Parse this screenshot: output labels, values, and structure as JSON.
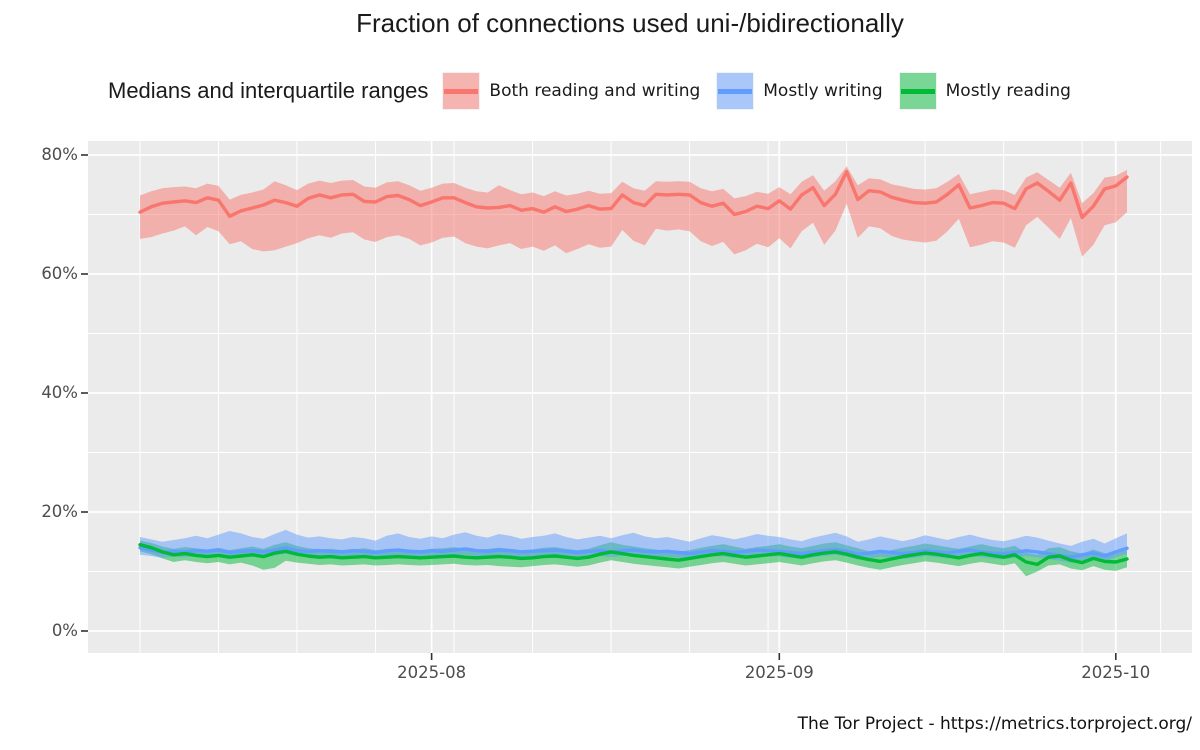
{
  "title": "Fraction of connections used uni-/bidirectionally",
  "legend": {
    "title": "Medians and interquartile ranges",
    "items": [
      {
        "name": "both-reading-and-writing",
        "label": "Both reading and writing",
        "color": "#F8766D"
      },
      {
        "name": "mostly-writing",
        "label": "Mostly writing",
        "color": "#619CFF"
      },
      {
        "name": "mostly-reading",
        "label": "Mostly reading",
        "color": "#00BA38"
      }
    ]
  },
  "footer": "The Tor Project - https://metrics.torproject.org/",
  "colors": {
    "panel_bg": "#EBEBEB",
    "grid": "#FFFFFF",
    "axis_text": "#4D4D4D",
    "tick_mark": "#333333",
    "legend_key_bg": "#F2F2F2",
    "red": "#F8766D",
    "blue": "#619CFF",
    "green": "#00BA38"
  },
  "axes": {
    "y_ticks": [
      {
        "label": "80%",
        "value": 80
      },
      {
        "label": "60%",
        "value": 60
      },
      {
        "label": "40%",
        "value": 40
      },
      {
        "label": "20%",
        "value": 20
      },
      {
        "label": "0%",
        "value": 0
      }
    ],
    "y_minor": [
      70,
      50,
      30,
      10
    ],
    "x_ticks": [
      {
        "label": "2025-08",
        "day_index": 26
      },
      {
        "label": "2025-09",
        "day_index": 57
      },
      {
        "label": "2025-10",
        "day_index": 87
      }
    ]
  },
  "chart_data": {
    "type": "area",
    "title": "Fraction of connections used uni-/bidirectionally",
    "subtitle": "Medians and interquartile ranges",
    "x_start_date": "2025-07-06",
    "x_end_date": "2025-10-02",
    "x_unit": "day",
    "n_points": 89,
    "ylabel": "",
    "ylim": [
      0,
      82
    ],
    "grid": true,
    "legend_position": "top",
    "series": [
      {
        "name": "Both reading and writing",
        "color": "#F8766D",
        "median": [
          70.4,
          71.3,
          71.9,
          72.1,
          72.3,
          72.0,
          72.8,
          72.4,
          69.7,
          70.6,
          71.1,
          71.6,
          72.4,
          72.0,
          71.4,
          72.7,
          73.3,
          72.8,
          73.3,
          73.4,
          72.2,
          72.1,
          73.0,
          73.2,
          72.5,
          71.5,
          72.1,
          72.8,
          72.8,
          72.0,
          71.3,
          71.1,
          71.2,
          71.5,
          70.7,
          71.0,
          70.4,
          71.3,
          70.5,
          70.9,
          71.5,
          70.9,
          71.0,
          73.3,
          72.0,
          71.5,
          73.4,
          73.3,
          73.4,
          73.3,
          72.0,
          71.4,
          71.9,
          70.0,
          70.5,
          71.4,
          71.0,
          72.3,
          70.9,
          73.3,
          74.5,
          71.5,
          73.4,
          77.2,
          72.5,
          74.0,
          73.8,
          72.9,
          72.4,
          72.0,
          71.9,
          72.1,
          73.4,
          75.0,
          71.1,
          71.5,
          72.0,
          71.9,
          71.0,
          74.3,
          75.3,
          73.9,
          72.4,
          75.3,
          69.5,
          71.4,
          74.3,
          74.8,
          76.3
        ],
        "upper": [
          73.2,
          73.9,
          74.4,
          74.6,
          74.7,
          74.4,
          75.2,
          74.8,
          72.5,
          73.3,
          73.7,
          74.2,
          75.6,
          74.9,
          74.1,
          75.2,
          75.7,
          75.3,
          75.7,
          75.8,
          74.7,
          74.5,
          75.4,
          75.6,
          74.9,
          74.0,
          74.5,
          75.2,
          75.3,
          74.5,
          73.9,
          73.7,
          74.9,
          74.1,
          73.4,
          73.7,
          73.1,
          73.9,
          73.2,
          73.5,
          74.0,
          73.5,
          73.6,
          75.5,
          74.4,
          74.0,
          75.6,
          75.5,
          75.6,
          75.5,
          74.4,
          73.9,
          74.3,
          72.7,
          73.1,
          73.8,
          73.5,
          74.6,
          73.4,
          75.5,
          76.6,
          74.0,
          75.6,
          78.1,
          74.9,
          76.1,
          75.9,
          75.1,
          74.7,
          74.3,
          74.2,
          74.4,
          75.5,
          76.8,
          73.4,
          73.8,
          74.2,
          74.1,
          73.3,
          76.2,
          77.1,
          75.8,
          74.5,
          77.0,
          71.9,
          73.6,
          76.2,
          76.5,
          77.5
        ],
        "lower": [
          65.9,
          66.2,
          66.8,
          67.3,
          68.0,
          66.5,
          67.9,
          67.2,
          65.0,
          65.5,
          64.2,
          63.8,
          64.0,
          64.6,
          65.2,
          66.0,
          66.5,
          66.1,
          66.8,
          67.0,
          65.8,
          65.4,
          66.2,
          66.5,
          65.9,
          64.8,
          65.3,
          66.1,
          66.3,
          65.2,
          64.6,
          64.3,
          64.8,
          65.2,
          64.2,
          64.6,
          63.9,
          64.8,
          63.5,
          64.2,
          65.0,
          64.4,
          64.6,
          67.4,
          65.6,
          64.8,
          67.6,
          67.3,
          67.5,
          67.2,
          65.5,
          64.7,
          65.4,
          63.3,
          64.0,
          65.1,
          64.5,
          66.0,
          64.3,
          67.2,
          68.6,
          64.9,
          67.3,
          71.8,
          66.1,
          68.0,
          67.7,
          66.4,
          65.8,
          65.5,
          65.3,
          65.6,
          67.2,
          69.3,
          64.5,
          64.9,
          65.5,
          65.3,
          64.4,
          68.2,
          69.6,
          67.8,
          65.9,
          69.4,
          62.9,
          64.9,
          68.2,
          68.7,
          70.4
        ]
      },
      {
        "name": "Mostly writing",
        "color": "#619CFF",
        "median": [
          14.0,
          13.6,
          13.2,
          13.4,
          13.3,
          13.5,
          13.4,
          13.6,
          13.2,
          13.4,
          13.5,
          13.3,
          13.6,
          14.0,
          13.5,
          13.4,
          13.5,
          13.4,
          13.3,
          13.5,
          13.4,
          13.2,
          13.5,
          13.6,
          13.4,
          13.3,
          13.5,
          13.4,
          13.6,
          13.8,
          13.5,
          13.4,
          13.6,
          13.5,
          13.3,
          13.4,
          13.5,
          13.6,
          13.4,
          13.2,
          13.4,
          13.5,
          13.3,
          13.5,
          13.6,
          13.4,
          13.3,
          13.4,
          13.2,
          13.0,
          13.3,
          13.5,
          13.4,
          13.2,
          13.4,
          13.6,
          13.5,
          13.4,
          13.2,
          13.0,
          13.3,
          13.5,
          13.7,
          13.4,
          12.9,
          13.1,
          13.4,
          13.2,
          13.0,
          13.2,
          13.5,
          13.3,
          13.1,
          13.4,
          13.6,
          13.3,
          13.1,
          13.0,
          13.2,
          13.5,
          13.3,
          13.0,
          12.7,
          12.4,
          12.8,
          13.1,
          12.6,
          13.3,
          13.9
        ],
        "upper": [
          15.8,
          15.4,
          15.0,
          15.3,
          15.6,
          16.0,
          15.6,
          16.2,
          16.8,
          16.4,
          15.8,
          15.5,
          16.3,
          17.0,
          16.2,
          15.7,
          15.9,
          15.6,
          15.4,
          15.8,
          15.6,
          15.2,
          16.0,
          16.4,
          15.8,
          15.5,
          15.9,
          15.6,
          16.2,
          16.6,
          16.0,
          15.7,
          16.3,
          16.0,
          15.5,
          15.8,
          16.0,
          16.4,
          15.8,
          15.4,
          15.7,
          16.0,
          15.6,
          16.1,
          16.5,
          15.9,
          15.6,
          15.8,
          15.4,
          15.0,
          15.6,
          16.1,
          15.8,
          15.4,
          15.8,
          16.3,
          16.0,
          15.8,
          15.4,
          15.1,
          15.7,
          16.1,
          16.5,
          15.9,
          15.0,
          15.4,
          15.9,
          15.5,
          15.1,
          15.5,
          16.1,
          15.7,
          15.3,
          15.8,
          16.2,
          15.7,
          15.3,
          15.1,
          15.5,
          16.0,
          15.7,
          15.2,
          14.7,
          14.3,
          15.0,
          15.5,
          14.7,
          15.6,
          16.4
        ],
        "lower": [
          12.8,
          12.6,
          12.3,
          12.5,
          12.4,
          12.6,
          12.5,
          12.7,
          12.3,
          12.5,
          12.6,
          12.4,
          12.7,
          13.0,
          12.6,
          12.5,
          12.6,
          12.5,
          12.4,
          12.6,
          12.5,
          12.3,
          12.6,
          12.7,
          12.5,
          12.4,
          12.6,
          12.5,
          12.7,
          12.8,
          12.6,
          12.5,
          12.7,
          12.6,
          12.4,
          12.5,
          12.6,
          12.7,
          12.5,
          12.3,
          12.5,
          12.6,
          12.4,
          12.6,
          12.7,
          12.5,
          12.4,
          12.5,
          12.3,
          12.1,
          12.4,
          12.6,
          12.5,
          12.3,
          12.5,
          12.7,
          12.6,
          12.5,
          12.3,
          12.1,
          12.4,
          12.6,
          12.8,
          12.5,
          12.0,
          12.2,
          12.5,
          12.3,
          12.1,
          12.3,
          12.6,
          12.4,
          12.2,
          12.5,
          12.7,
          12.4,
          12.2,
          12.1,
          12.3,
          12.6,
          12.4,
          12.1,
          11.8,
          11.5,
          11.9,
          12.2,
          11.7,
          12.4,
          13.0
        ]
      },
      {
        "name": "Mostly reading",
        "color": "#00BA38",
        "median": [
          14.5,
          14.0,
          13.3,
          12.8,
          13.0,
          12.7,
          12.5,
          12.7,
          12.4,
          12.6,
          12.8,
          12.5,
          13.1,
          13.4,
          12.9,
          12.6,
          12.4,
          12.5,
          12.3,
          12.4,
          12.5,
          12.3,
          12.4,
          12.5,
          12.4,
          12.3,
          12.4,
          12.5,
          12.6,
          12.4,
          12.3,
          12.4,
          12.5,
          12.4,
          12.2,
          12.3,
          12.5,
          12.6,
          12.4,
          12.2,
          12.4,
          12.9,
          13.3,
          13.0,
          12.7,
          12.5,
          12.3,
          12.1,
          11.9,
          12.2,
          12.5,
          12.8,
          13.0,
          12.7,
          12.4,
          12.6,
          12.8,
          13.0,
          12.7,
          12.4,
          12.8,
          13.1,
          13.3,
          12.9,
          12.4,
          12.0,
          11.7,
          12.1,
          12.5,
          12.8,
          13.1,
          12.9,
          12.6,
          12.3,
          12.7,
          13.0,
          12.7,
          12.4,
          12.8,
          11.6,
          11.2,
          12.4,
          12.6,
          11.9,
          11.5,
          12.2,
          11.7,
          11.6,
          12.1
        ],
        "upper": [
          15.2,
          14.8,
          14.2,
          13.8,
          14.1,
          13.9,
          13.7,
          14.0,
          13.6,
          13.9,
          14.2,
          13.8,
          14.5,
          14.9,
          14.3,
          13.9,
          13.7,
          13.8,
          13.6,
          13.7,
          13.9,
          13.6,
          13.7,
          13.9,
          13.7,
          13.6,
          13.8,
          13.9,
          14.1,
          13.8,
          13.7,
          13.8,
          14.0,
          13.8,
          13.6,
          13.7,
          14.0,
          14.1,
          13.8,
          13.6,
          13.8,
          14.4,
          14.9,
          14.5,
          14.2,
          13.9,
          13.7,
          13.5,
          13.3,
          13.6,
          14.0,
          14.3,
          14.6,
          14.2,
          13.8,
          14.1,
          14.3,
          14.6,
          14.2,
          13.9,
          14.3,
          14.7,
          14.9,
          14.4,
          13.9,
          13.4,
          13.1,
          13.6,
          14.0,
          14.3,
          14.7,
          14.4,
          14.1,
          13.8,
          14.2,
          14.6,
          14.2,
          13.9,
          14.3,
          13.2,
          12.8,
          13.9,
          14.1,
          13.4,
          13.0,
          13.7,
          13.1,
          13.0,
          13.6
        ],
        "lower": [
          13.4,
          12.9,
          12.2,
          11.6,
          11.9,
          11.6,
          11.4,
          11.6,
          11.2,
          11.5,
          11.0,
          10.3,
          10.6,
          11.8,
          11.5,
          11.3,
          11.1,
          11.2,
          11.0,
          11.1,
          11.2,
          11.0,
          11.1,
          11.2,
          11.1,
          11.0,
          11.1,
          11.2,
          11.3,
          11.1,
          11.0,
          11.1,
          10.9,
          10.8,
          10.7,
          10.9,
          11.1,
          11.2,
          11.0,
          10.8,
          11.0,
          11.5,
          11.9,
          11.6,
          11.3,
          11.1,
          10.9,
          10.7,
          10.5,
          10.8,
          11.1,
          11.4,
          11.6,
          11.3,
          11.0,
          11.2,
          11.4,
          11.6,
          11.3,
          11.0,
          11.4,
          11.7,
          11.9,
          11.5,
          11.0,
          10.6,
          10.3,
          10.7,
          11.1,
          11.4,
          11.7,
          11.5,
          11.2,
          10.9,
          11.3,
          11.6,
          11.3,
          11.0,
          11.4,
          9.2,
          10.0,
          11.0,
          11.2,
          10.5,
          10.2,
          10.9,
          10.3,
          10.1,
          10.7
        ]
      }
    ]
  }
}
